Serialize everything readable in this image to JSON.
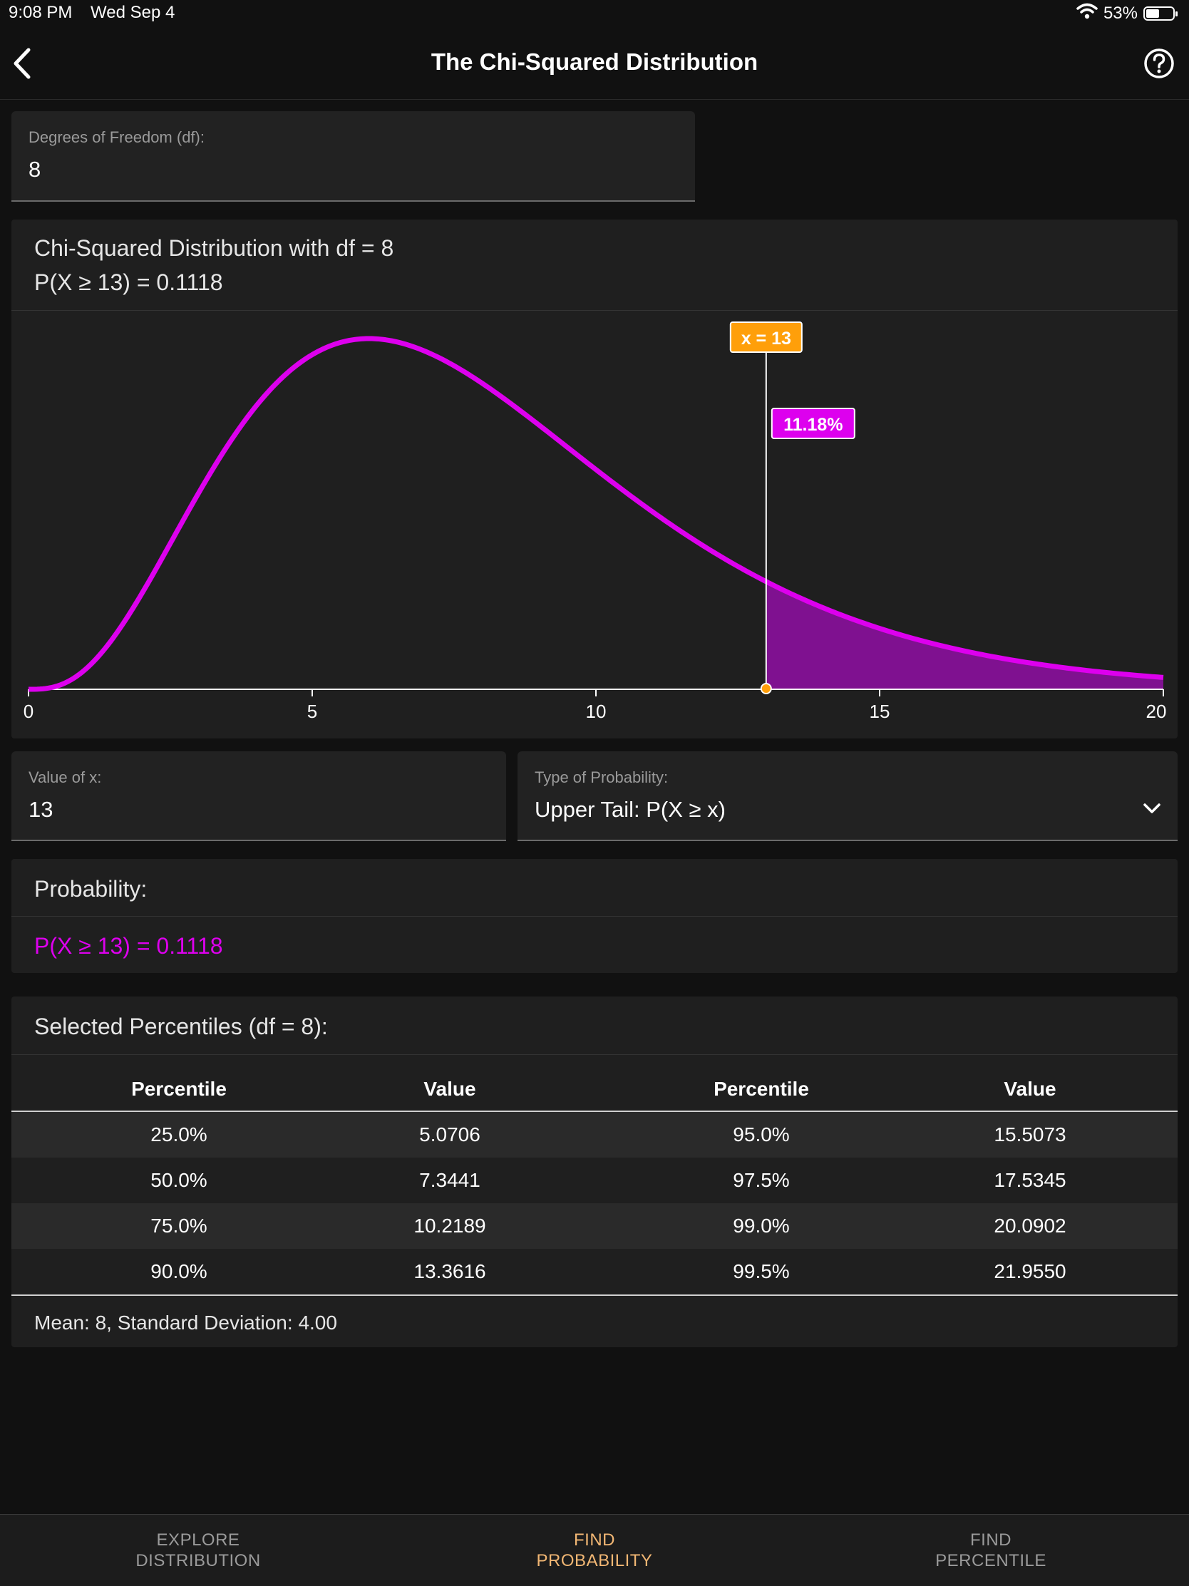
{
  "status_bar": {
    "time": "9:08 PM",
    "date": "Wed Sep 4",
    "battery": "53%"
  },
  "nav": {
    "title": "The Chi-Squared Distribution"
  },
  "df_field": {
    "label": "Degrees of Freedom (df):",
    "value": "8"
  },
  "chart_card": {
    "title": "Chi-Squared Distribution with df = 8",
    "subtitle": "P(X ≥ 13) = 0.1118"
  },
  "chart_data": {
    "type": "area",
    "df": 8,
    "x_range": [
      0,
      20
    ],
    "x_ticks": [
      "0",
      "5",
      "10",
      "15",
      "20"
    ],
    "marker_x": 13,
    "marker_label": "x = 13",
    "shaded_label": "11.18%",
    "shaded_region": "upper tail, x ≥ 13",
    "colors": {
      "curve": "#dd00ee",
      "shade": "#7f1190",
      "marker": "#ff9f0a"
    }
  },
  "x_field": {
    "label": "Value of x:",
    "value": "13"
  },
  "prob_type_field": {
    "label": "Type of Probability:",
    "value": "Upper Tail: P(X ≥ x)"
  },
  "probability": {
    "heading": "Probability:",
    "result": "P(X ≥ 13) = 0.1118"
  },
  "percentiles": {
    "heading": "Selected Percentiles (df = 8):",
    "columns": [
      "Percentile",
      "Value",
      "Percentile",
      "Value"
    ],
    "rows": [
      [
        "25.0%",
        "5.0706",
        "95.0%",
        "15.5073"
      ],
      [
        "50.0%",
        "7.3441",
        "97.5%",
        "17.5345"
      ],
      [
        "75.0%",
        "10.2189",
        "99.0%",
        "20.0902"
      ],
      [
        "90.0%",
        "13.3616",
        "99.5%",
        "21.9550"
      ]
    ],
    "footer": "Mean: 8, Standard Deviation: 4.00"
  },
  "tabs": [
    {
      "line1": "EXPLORE",
      "line2": "DISTRIBUTION",
      "active": false
    },
    {
      "line1": "FIND",
      "line2": "PROBABILITY",
      "active": true
    },
    {
      "line1": "FIND",
      "line2": "PERCENTILE",
      "active": false
    }
  ],
  "colors": {
    "accent": "#dd00ee",
    "active_tab": "#f2b774",
    "inactive_tab": "#9a9a9a",
    "marker": "#ff9f0a"
  }
}
